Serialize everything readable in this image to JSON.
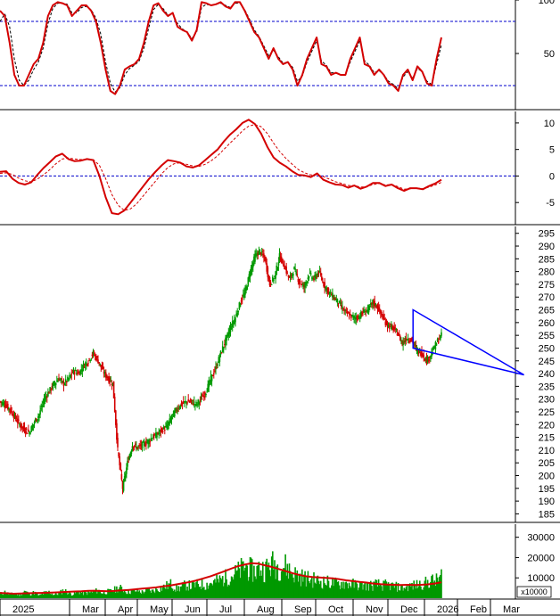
{
  "chart_data": [
    {
      "type": "line",
      "panel": "stochastic",
      "ylim": [
        0,
        100
      ],
      "yticks": [
        50,
        100
      ],
      "reference_lines": [
        20,
        80
      ],
      "series": [
        {
          "color": "#d40000",
          "values": [
            90,
            85,
            60,
            30,
            20,
            20,
            30,
            40,
            45,
            60,
            85,
            95,
            98,
            97,
            95,
            85,
            90,
            95,
            95,
            90,
            80,
            60,
            35,
            15,
            12,
            20,
            35,
            38,
            40,
            45,
            60,
            80,
            95,
            97,
            90,
            85,
            88,
            75,
            72,
            70,
            62,
            72,
            98,
            97,
            95,
            96,
            98,
            94,
            92,
            98,
            98,
            90,
            80,
            70,
            65,
            55,
            45,
            55,
            45,
            40,
            42,
            35,
            20,
            30,
            45,
            55,
            65,
            40,
            38,
            30,
            32,
            30,
            30,
            45,
            55,
            65,
            40,
            38,
            30,
            35,
            30,
            22,
            20,
            15,
            30,
            35,
            25,
            38,
            33,
            22,
            20,
            45,
            65
          ]
        },
        {
          "color": "#000000",
          "dashed": true,
          "values": [
            80,
            87,
            75,
            45,
            25,
            20,
            25,
            35,
            42,
            55,
            78,
            92,
            97,
            97,
            96,
            88,
            88,
            93,
            94,
            91,
            83,
            68,
            42,
            22,
            14,
            18,
            30,
            36,
            39,
            43,
            55,
            74,
            91,
            96,
            92,
            86,
            87,
            78,
            73,
            70,
            64,
            70,
            93,
            96,
            95,
            96,
            97,
            95,
            93,
            97,
            97,
            91,
            82,
            72,
            66,
            57,
            48,
            53,
            47,
            41,
            42,
            37,
            24,
            29,
            42,
            52,
            62,
            43,
            39,
            32,
            32,
            30,
            30,
            42,
            52,
            62,
            43,
            39,
            32,
            34,
            30,
            24,
            21,
            17,
            28,
            33,
            27,
            36,
            33,
            24,
            21,
            40,
            58
          ]
        }
      ]
    },
    {
      "type": "line",
      "panel": "oscillator",
      "ylim": [
        -9,
        12
      ],
      "yticks": [
        -5,
        0,
        5,
        10
      ],
      "reference_lines": [
        0
      ],
      "series": [
        {
          "color": "#d40000",
          "values": [
            0.8,
            0.9,
            -0.5,
            -1.3,
            -1.6,
            -1.2,
            0.2,
            1.5,
            2.6,
            3.7,
            4.2,
            3.2,
            2.8,
            2.9,
            3.2,
            3.0,
            0.0,
            -4.0,
            -7.0,
            -7.2,
            -6.5,
            -5.0,
            -3.5,
            -2.0,
            -0.5,
            0.8,
            2.0,
            3.0,
            2.8,
            2.5,
            1.8,
            1.6,
            2.0,
            3.0,
            4.0,
            5.0,
            6.5,
            7.8,
            8.8,
            10.0,
            10.6,
            9.8,
            8.0,
            5.5,
            3.5,
            2.5,
            1.8,
            0.9,
            0.2,
            0.1,
            -0.2,
            0.5,
            -0.7,
            -1.2,
            -1.6,
            -1.7,
            -2.2,
            -1.8,
            -2.4,
            -2.0,
            -1.3,
            -1.3,
            -1.9,
            -1.6,
            -2.3,
            -2.8,
            -2.3,
            -2.3,
            -2.5,
            -1.9,
            -1.4,
            -0.7
          ]
        },
        {
          "color": "#d40000",
          "dashed": true,
          "values": [
            0.5,
            0.6,
            0.3,
            -0.4,
            -0.9,
            -1.1,
            -0.6,
            0.2,
            1.2,
            2.3,
            3.2,
            3.4,
            3.2,
            3.1,
            3.1,
            3.1,
            2.0,
            -0.5,
            -3.5,
            -5.5,
            -6.5,
            -6.2,
            -5.2,
            -3.8,
            -2.4,
            -1.0,
            0.4,
            1.6,
            2.3,
            2.5,
            2.2,
            1.9,
            1.8,
            2.2,
            2.9,
            3.8,
            5.0,
            6.2,
            7.3,
            8.5,
            9.4,
            9.7,
            9.3,
            8.0,
            6.2,
            4.6,
            3.3,
            2.2,
            1.2,
            0.6,
            0.2,
            0.2,
            -0.1,
            -0.6,
            -1.1,
            -1.4,
            -1.8,
            -1.8,
            -2.1,
            -2.0,
            -1.6,
            -1.4,
            -1.7,
            -1.6,
            -2.0,
            -2.5,
            -2.4,
            -2.3,
            -2.4,
            -2.1,
            -1.7,
            -1.2
          ]
        }
      ]
    },
    {
      "type": "line",
      "panel": "price",
      "ylim": [
        182,
        297
      ],
      "yticks": [
        185,
        190,
        195,
        200,
        205,
        210,
        215,
        220,
        225,
        230,
        235,
        240,
        245,
        250,
        255,
        260,
        265,
        270,
        275,
        280,
        285,
        290,
        295
      ],
      "series": [
        {
          "color": "#009900",
          "values": [
            229,
            228,
            226,
            223,
            220,
            218,
            217,
            221,
            224,
            230,
            233,
            236,
            238,
            236,
            238,
            241,
            240,
            243,
            245,
            248,
            245,
            241,
            238,
            236,
            210,
            195,
            205,
            212,
            211,
            212,
            213,
            215,
            216,
            218,
            219,
            223,
            226,
            228,
            229,
            229,
            228,
            230,
            233,
            238,
            242,
            248,
            253,
            258,
            262,
            268,
            272,
            280,
            286,
            288,
            285,
            275,
            278,
            286,
            282,
            277,
            281,
            276,
            274,
            279,
            277,
            280,
            275,
            272,
            270,
            268,
            265,
            263,
            262,
            262,
            264,
            265,
            268,
            266,
            262,
            259,
            258,
            256,
            252,
            254,
            253,
            249,
            248,
            245,
            248,
            252,
            255
          ]
        }
      ],
      "pattern": {
        "color": "#0000ff",
        "points": [
          [
            87.5,
            265
          ],
          [
            87.5,
            250
          ],
          [
            111,
            239.5
          ]
        ]
      }
    },
    {
      "type": "bar",
      "panel": "volume",
      "ylim": [
        0,
        36000
      ],
      "yticks": [
        10000,
        20000,
        30000
      ],
      "unit_label": "x10000",
      "values": [
        2000,
        3000,
        1800,
        2200,
        1500,
        3500,
        2000,
        2800,
        1200,
        2500,
        3000,
        1800,
        2200,
        4000,
        2500,
        2000,
        3200,
        2400,
        2600,
        3000,
        3800,
        2600,
        3200,
        3500,
        5000,
        4600,
        3000,
        3600,
        3600,
        3000,
        4000,
        3400,
        4500,
        5000,
        6000,
        7000,
        4500,
        5500,
        6500,
        6000,
        6500,
        7000,
        6500,
        7500,
        8000,
        9000,
        10000,
        11000,
        12000,
        13500,
        16000,
        14000,
        13000,
        15000,
        14000,
        16000,
        17000,
        15000,
        16000,
        14000,
        12000,
        11000,
        10000,
        9500,
        9000,
        8500,
        8000,
        7800,
        7500,
        7000,
        7400,
        7200,
        6800,
        6500,
        6400,
        6200,
        6300,
        6800,
        6200,
        6500,
        6000,
        5500,
        5000,
        5500,
        6000,
        6500,
        7000,
        7500,
        8500,
        8500,
        11000
      ],
      "average": {
        "color": "#d40000",
        "values": [
          2600,
          2400,
          2200,
          2300,
          2400,
          2500,
          2600,
          2700,
          2800,
          3000,
          3100,
          3300,
          3400,
          3600,
          3700,
          3500,
          3400,
          3600,
          3800,
          4100,
          4400,
          4700,
          5000,
          5300,
          5800,
          6200,
          6800,
          7400,
          8000,
          8800,
          9800,
          10800,
          12000,
          13200,
          14500,
          15700,
          16500,
          17200,
          17000,
          16200,
          15400,
          14400,
          13400,
          12400,
          11500,
          10800,
          10400,
          10200,
          10000,
          9800,
          9300,
          8800,
          8400,
          8000,
          7700,
          7200,
          6900,
          6700,
          6600,
          6500,
          6600,
          6500,
          6600,
          6800,
          7200,
          7800
        ]
      }
    }
  ],
  "months": [
    "2025",
    "Mar",
    "Apr",
    "May",
    "Jun",
    "Jul",
    "Aug",
    "Sep",
    "Oct",
    "Nov",
    "Dec",
    "2026",
    "Feb",
    "Mar"
  ],
  "colors": {
    "up": "#009900",
    "down": "#d40000",
    "dash": "#0000cc",
    "axis": "#000000"
  }
}
